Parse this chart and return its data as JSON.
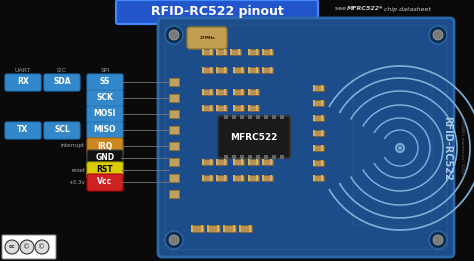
{
  "title": "RFID-RC522 pinout",
  "subtitle": "see MFRC522* chip datasheet",
  "bg_color": "#0a0a0a",
  "board_color": "#1c4d8a",
  "board_color2": "#1a4578",
  "board_dark": "#0d2d50",
  "board_edge": "#2a6aaa",
  "board_trace": "#2a5a8a",
  "title_bg": "#2255cc",
  "title_fg": "#ffffff",
  "title_edge": "#4488ff",
  "pin_labels": [
    "SS",
    "SCK",
    "MOSI",
    "MISO",
    "IRQ",
    "GND",
    "RST",
    "Vcc"
  ],
  "pin_colors": [
    "#3388cc",
    "#3388cc",
    "#3388cc",
    "#3388cc",
    "#cc8822",
    "#111111",
    "#ddcc00",
    "#cc2222"
  ],
  "pin_text_colors": [
    "#ffffff",
    "#ffffff",
    "#ffffff",
    "#ffffff",
    "#ffffff",
    "#ffffff",
    "#000000",
    "#ffffff"
  ],
  "uart_color": "#3388cc",
  "i2c_color": "#3388cc",
  "spi_color": "#3388cc",
  "header_labels": [
    "UART",
    "I2C",
    "SPI"
  ],
  "interrupt_label": "interrupt",
  "reset_label": "reset",
  "v33_label": "+3.3v",
  "chip_color": "#1a1a1a",
  "chip_label": "MFRC522",
  "antenna_color": "#7ab0d8",
  "rfid_text": "RFID-RC522",
  "comp_color": "#b89050",
  "comp_edge": "#7a6030",
  "crystal_color": "#c0a050",
  "pad_color": "#c0a060",
  "pad_edge": "#907030",
  "subtitle_italic": true,
  "year_text": "r00GER | marmex.eu | 2014 ©"
}
